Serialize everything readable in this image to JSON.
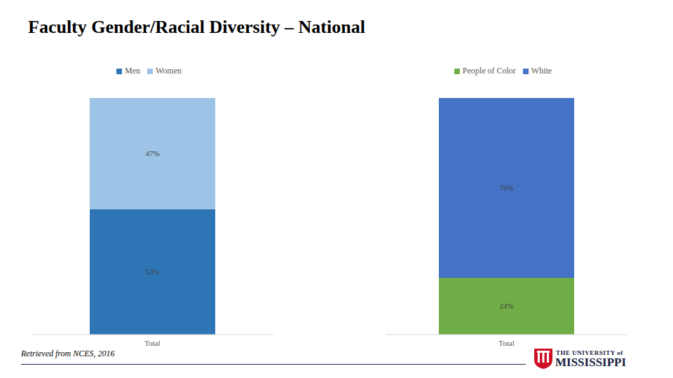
{
  "title": "Faculty Gender/Racial Diversity – National",
  "source": "Retrieved from NCES, 2016",
  "logo": [
    "THE UNIVERSITY of",
    "MISSISSIPPI"
  ],
  "chart_data": [
    {
      "type": "bar",
      "stacked": true,
      "data_labels": true,
      "legend": "top",
      "tick_labels": "x",
      "categories": [
        "Total"
      ],
      "ylim": [
        0,
        100
      ],
      "series": [
        {
          "name": "Men",
          "color": "#2e75b6",
          "values": [
            53
          ],
          "value_labels": [
            "53%"
          ]
        },
        {
          "name": "Women",
          "color": "#9dc3e6",
          "values": [
            47
          ],
          "value_labels": [
            "47%"
          ]
        }
      ]
    },
    {
      "type": "bar",
      "stacked": true,
      "data_labels": true,
      "legend": "top",
      "tick_labels": "x",
      "categories": [
        "Total"
      ],
      "ylim": [
        0,
        100
      ],
      "series": [
        {
          "name": "People of Color",
          "color": "#70ad47",
          "values": [
            24
          ],
          "value_labels": [
            "24%"
          ]
        },
        {
          "name": "White",
          "color": "#4472c4",
          "values": [
            76
          ],
          "value_labels": [
            "76%"
          ]
        }
      ]
    }
  ]
}
